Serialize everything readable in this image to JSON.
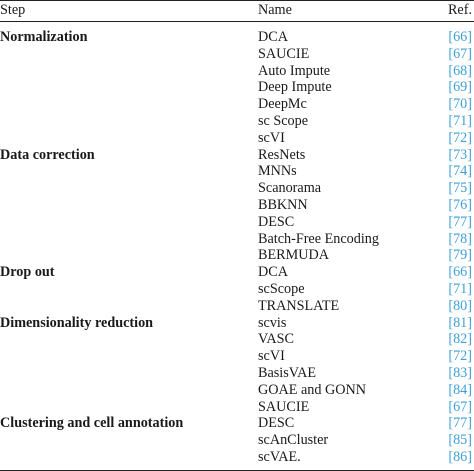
{
  "table": {
    "headers": {
      "step": "Step",
      "name": "Name",
      "ref": "Ref."
    },
    "rows": [
      {
        "step": "Normalization",
        "name": "DCA",
        "ref": "[66]"
      },
      {
        "step": "",
        "name": "SAUCIE",
        "ref": "[67]"
      },
      {
        "step": "",
        "name": "Auto Impute",
        "ref": "[68]"
      },
      {
        "step": "",
        "name": "Deep Impute",
        "ref": "[69]"
      },
      {
        "step": "",
        "name": "DeepMc",
        "ref": "[70]"
      },
      {
        "step": "",
        "name": "sc Scope",
        "ref": "[71]"
      },
      {
        "step": "",
        "name": "scVI",
        "ref": "[72]"
      },
      {
        "step": "Data correction",
        "name": "ResNets",
        "ref": "[73]"
      },
      {
        "step": "",
        "name": "MNNs",
        "ref": "[74]"
      },
      {
        "step": "",
        "name": "Scanorama",
        "ref": "[75]"
      },
      {
        "step": "",
        "name": "BBKNN",
        "ref": "[76]"
      },
      {
        "step": "",
        "name": "DESC",
        "ref": "[77]"
      },
      {
        "step": "",
        "name": "Batch-Free Encoding",
        "ref": "[78]"
      },
      {
        "step": "",
        "name": "BERMUDA",
        "ref": "[79]"
      },
      {
        "step": "Drop out",
        "name": "DCA",
        "ref": "[66]"
      },
      {
        "step": "",
        "name": "scScope",
        "ref": "[71]"
      },
      {
        "step": "",
        "name": "TRANSLATE",
        "ref": "[80]"
      },
      {
        "step": "Dimensionality reduction",
        "name": "scvis",
        "ref": "[81]"
      },
      {
        "step": "",
        "name": "VASC",
        "ref": "[82]"
      },
      {
        "step": "",
        "name": "scVI",
        "ref": "[72]"
      },
      {
        "step": "",
        "name": "BasisVAE",
        "ref": "[83]"
      },
      {
        "step": "",
        "name": "GOAE and GONN",
        "ref": "[84]"
      },
      {
        "step": "",
        "name": "SAUCIE",
        "ref": "[67]"
      },
      {
        "step": "Clustering and cell annotation",
        "name": "DESC",
        "ref": "[77]"
      },
      {
        "step": "",
        "name": "scAnCluster",
        "ref": "[85]"
      },
      {
        "step": "",
        "name": "scVAE.",
        "ref": "[86]"
      }
    ]
  },
  "colors": {
    "text": "#1a1a1a",
    "ref_link": "#3fa0d8",
    "rule": "#222222"
  }
}
